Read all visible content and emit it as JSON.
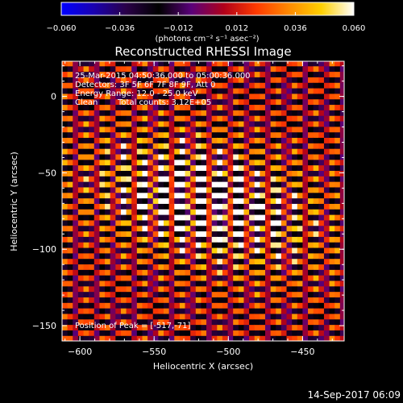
{
  "colorbar": {
    "ticks": [
      "−0.060",
      "−0.036",
      "−0.012",
      "0.012",
      "0.036",
      "0.060"
    ],
    "unit_label": "(photons cm⁻² s⁻¹ asec⁻²)",
    "min": -0.06,
    "max": 0.06,
    "colormap": [
      "#0000ff",
      "#1a00b0",
      "#2a0048",
      "#000000",
      "#5a007a",
      "#b0001a",
      "#ff3a00",
      "#ff8a00",
      "#ffd000",
      "#ffffff"
    ]
  },
  "title": "Reconstructed RHESSI Image",
  "annotations": {
    "time_range": "25-Mar-2015 04:50:36.000 to 05:00:36.000",
    "detectors": "Detectors: 3F 5F 6F 7F 8F 9F, Att 0",
    "energy": "Energy Range: 12.0 - 25.0 keV",
    "method": "Clean",
    "counts": "Total counts: 3.12E+05",
    "peak": "Position of Peak = [-517,-71]"
  },
  "footer_date": "14-Sep-2017 06:09",
  "chart_data": {
    "type": "heatmap",
    "title": "Reconstructed RHESSI Image",
    "xlabel": "Heliocentric X (arcsec)",
    "ylabel": "Heliocentric Y (arcsec)",
    "xlim": [
      -612,
      -422
    ],
    "ylim": [
      -160,
      23
    ],
    "x_ticks": [
      -600,
      -550,
      -500,
      -450
    ],
    "y_ticks": [
      0,
      -50,
      -100,
      -150
    ],
    "x_tick_labels": [
      "−600",
      "−550",
      "−500",
      "−450"
    ],
    "y_tick_labels": [
      "0",
      "−50",
      "−100",
      "−150"
    ],
    "peak": {
      "x": -517,
      "y": -71
    },
    "fringe_slope": -0.28,
    "fringe_period_arcsec": 7.2,
    "colorbar_range": [
      -0.06,
      0.06
    ]
  }
}
